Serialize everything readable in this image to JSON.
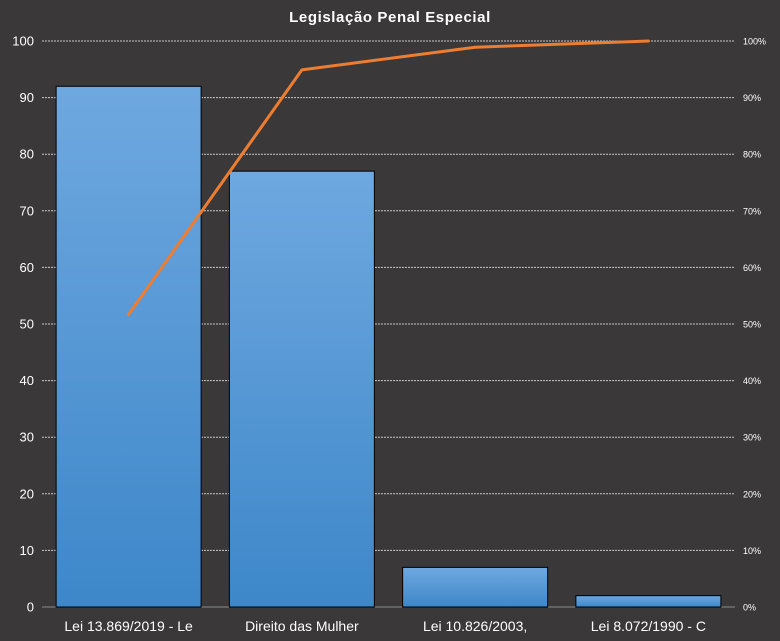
{
  "chart_data": {
    "type": "bar",
    "title": "Legislação Penal Especial",
    "categories": [
      "Lei 13.869/2019 - Le",
      "Direito das Mulher",
      "Lei 10.826/2003,",
      "Lei 8.072/1990 - C"
    ],
    "series": [
      {
        "type": "bar",
        "values": [
          92,
          77,
          7,
          2
        ]
      },
      {
        "type": "line",
        "axis": "secondary",
        "values": [
          51.7,
          94.9,
          98.9,
          100
        ]
      }
    ],
    "ylim": [
      0,
      100
    ],
    "y_ticks": [
      "0",
      "10",
      "20",
      "30",
      "40",
      "50",
      "60",
      "70",
      "80",
      "90",
      "100"
    ],
    "y2lim": [
      0,
      100
    ],
    "y2_ticks": [
      "0%",
      "10%",
      "20%",
      "30%",
      "40%",
      "50%",
      "60%",
      "70%",
      "80%",
      "90%",
      "100%"
    ],
    "grid": true,
    "colors": {
      "background": "#3a3838",
      "bar_top": "#6fa8e0",
      "bar_bottom": "#3d87c9",
      "line": "#ed7d31",
      "grid": "#d9d9d9",
      "text": "#ffffff"
    }
  }
}
